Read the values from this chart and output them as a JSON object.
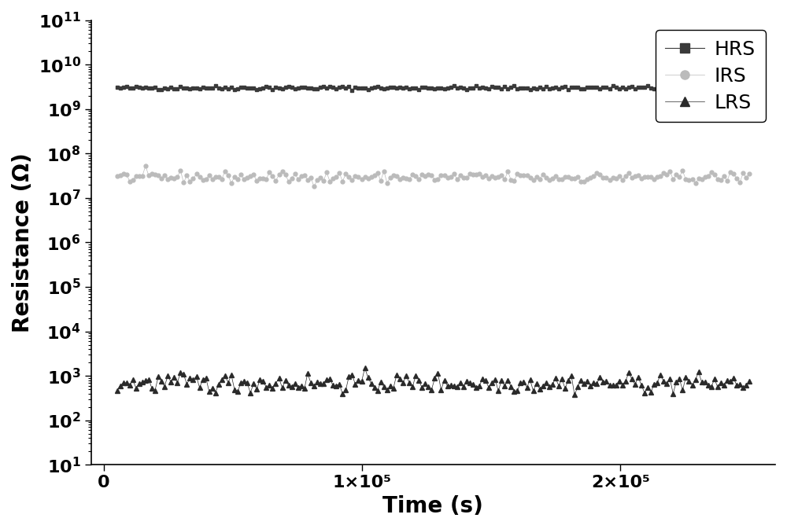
{
  "title": "",
  "xlabel": "Time (s)",
  "ylabel": "Resistance (Ω)",
  "xlim": [
    -5000,
    260000
  ],
  "ylim_log": [
    1,
    11
  ],
  "xticks": [
    0,
    100000,
    200000
  ],
  "xtick_labels": [
    "0",
    "1×10⁵",
    "2×10⁵"
  ],
  "HRS_color": "#3a3a3a",
  "IRS_color": "#bbbbbb",
  "LRS_color": "#2a2a2a",
  "HRS_mean": 3000000000.0,
  "IRS_mean": 30000000.0,
  "LRS_mean": 700,
  "HRS_noise": 0.05,
  "IRS_noise": 0.15,
  "LRS_noise": 0.25,
  "n_points": 200,
  "x_start": 5000,
  "x_end": 250000,
  "legend_labels": [
    "HRS",
    "IRS",
    "LRS"
  ],
  "xlabel_fontsize": 20,
  "ylabel_fontsize": 20,
  "tick_fontsize": 16,
  "legend_fontsize": 18
}
